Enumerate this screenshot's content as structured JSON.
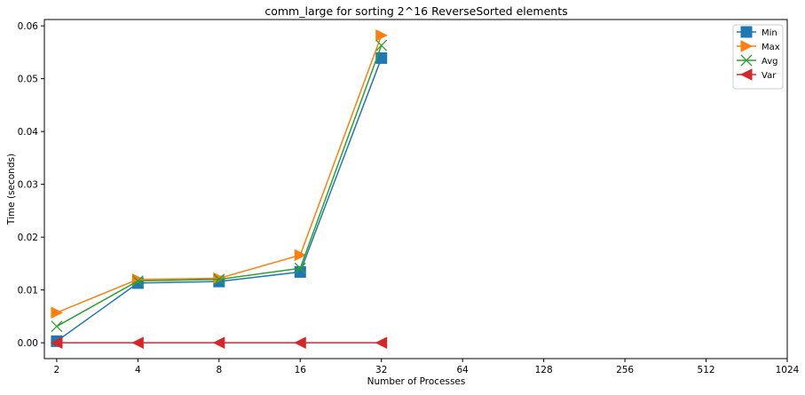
{
  "chart_data": {
    "type": "line",
    "title": "comm_large for sorting 2^16 ReverseSorted elements",
    "xlabel": "Number of Processes",
    "ylabel": "Time (seconds)",
    "x_scale": "log2",
    "x_ticks": [
      "2",
      "4",
      "8",
      "16",
      "32",
      "64",
      "128",
      "256",
      "512",
      "1024"
    ],
    "x_tick_values": [
      2,
      4,
      8,
      16,
      32,
      64,
      128,
      256,
      512,
      1024
    ],
    "y_ticks": [
      "0.00",
      "0.01",
      "0.02",
      "0.03",
      "0.04",
      "0.05",
      "0.06"
    ],
    "y_tick_values": [
      0,
      0.01,
      0.02,
      0.03,
      0.04,
      0.05,
      0.06
    ],
    "xlim": [
      1.8,
      1024
    ],
    "ylim": [
      -0.003,
      0.0612
    ],
    "grid": false,
    "legend_position": "top-right",
    "x": [
      2,
      4,
      8,
      16,
      32
    ],
    "series": [
      {
        "name": "Min",
        "color": "#1f77b4",
        "marker": "square",
        "values": [
          0.0003,
          0.0113,
          0.0116,
          0.0134,
          0.0539
        ]
      },
      {
        "name": "Max",
        "color": "#ff7f0e",
        "marker": "triangle-right",
        "values": [
          0.0057,
          0.012,
          0.0122,
          0.0166,
          0.0582
        ]
      },
      {
        "name": "Avg",
        "color": "#2ca02c",
        "marker": "x",
        "values": [
          0.0031,
          0.0117,
          0.012,
          0.0141,
          0.0563
        ]
      },
      {
        "name": "Var",
        "color": "#d62728",
        "marker": "triangle-left",
        "values": [
          0.0,
          0.0,
          0.0,
          0.0,
          0.0
        ]
      }
    ]
  }
}
